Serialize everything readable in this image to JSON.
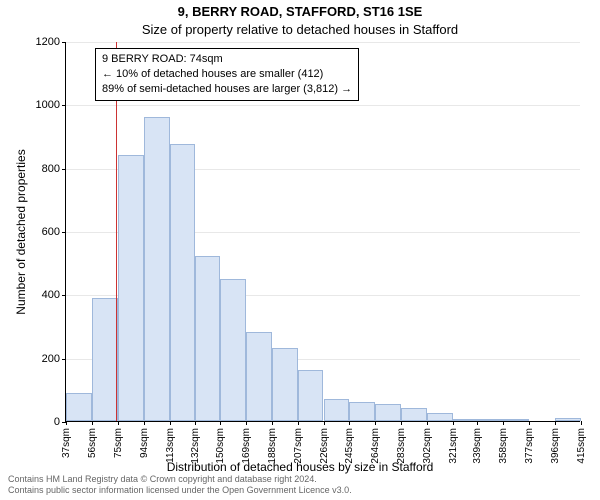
{
  "title": "9, BERRY ROAD, STAFFORD, ST16 1SE",
  "subtitle": "Size of property relative to detached houses in Stafford",
  "ylabel": "Number of detached properties",
  "xlabel": "Distribution of detached houses by size in Stafford",
  "chart": {
    "type": "histogram",
    "background_color": "#ffffff",
    "grid_color": "#e8e8e8",
    "axis_color": "#000000",
    "bar_fill": "#d8e4f5",
    "bar_border": "#9fb8db",
    "marker_color": "#cc3333",
    "ylim": [
      0,
      1200
    ],
    "ytick_step": 200,
    "yticks": [
      0,
      200,
      400,
      600,
      800,
      1000,
      1200
    ],
    "xticks": [
      37,
      56,
      75,
      94,
      113,
      132,
      150,
      169,
      188,
      207,
      226,
      245,
      264,
      283,
      302,
      321,
      339,
      358,
      377,
      396,
      415
    ],
    "xtick_unit": "sqm",
    "values": [
      90,
      390,
      840,
      960,
      875,
      520,
      450,
      280,
      230,
      160,
      70,
      60,
      55,
      40,
      25,
      5,
      5,
      5,
      0,
      10
    ],
    "marker_x": 74,
    "title_fontsize": 13,
    "label_fontsize": 12,
    "tick_fontsize": 10
  },
  "infobox": {
    "line1": "9 BERRY ROAD: 74sqm",
    "line2": "← 10% of detached houses are smaller (412)",
    "line3": "89% of semi-detached houses are larger (3,812) →"
  },
  "footer": {
    "line1": "Contains HM Land Registry data © Crown copyright and database right 2024.",
    "line2": "Contains public sector information licensed under the Open Government Licence v3.0."
  }
}
